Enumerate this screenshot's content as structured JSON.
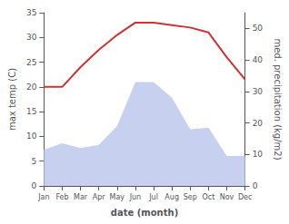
{
  "chart_data": {
    "type": "line",
    "xlabel": "date (month)",
    "ylabel": "max temp (C)",
    "y2label": "med. precipitation (kg/m2)",
    "categories": [
      "Jan",
      "Feb",
      "Mar",
      "Apr",
      "May",
      "Jun",
      "Jul",
      "Aug",
      "Sep",
      "Oct",
      "Nov",
      "Dec"
    ],
    "series": [
      {
        "type": "area",
        "color": "#c8d0f0",
        "axis": "y2",
        "values": [
          11.5,
          13.5,
          12.0,
          13.0,
          19.0,
          33.0,
          33.0,
          28.0,
          18.0,
          18.5,
          9.5,
          9.5
        ]
      },
      {
        "type": "line",
        "color": "#cc3333",
        "values": [
          20.0,
          20.0,
          24.0,
          27.5,
          30.5,
          33.0,
          33.0,
          32.5,
          32.0,
          31.0,
          26.0,
          21.5
        ]
      }
    ],
    "ylim": [
      0,
      35
    ],
    "yticks": [
      0,
      5,
      10,
      15,
      20,
      25,
      30,
      35
    ],
    "y2lim": [
      0,
      55
    ],
    "y2ticks": [
      0,
      10,
      20,
      30,
      40,
      50
    ],
    "grid": false
  }
}
